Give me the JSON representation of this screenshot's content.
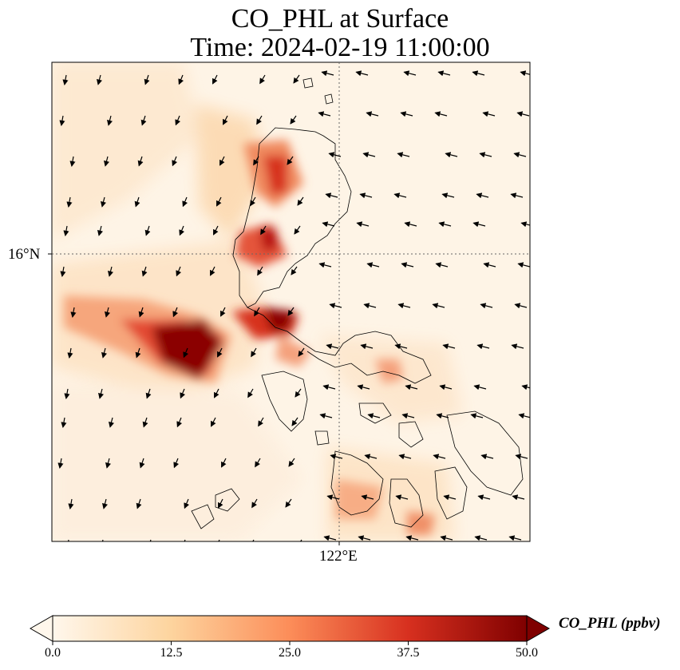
{
  "title": "CO_PHL at Surface",
  "subtitle": "Time: 2024-02-19 11:00:00",
  "map": {
    "variable": "CO_PHL",
    "level": "Surface",
    "lat_label": "16°N",
    "lon_label": "122°E",
    "gridlines": "dotted",
    "colormap": "OrRd",
    "features": [
      "coastlines",
      "wind-vectors",
      "concentration-field"
    ]
  },
  "colorbar": {
    "label": "CO_PHL (ppbv)",
    "ticks": [
      "0.0",
      "12.5",
      "25.0",
      "37.5",
      "50.0"
    ],
    "min": 0,
    "max": 50,
    "extend": "both",
    "colors": [
      "#fff7ec",
      "#fdd49e",
      "#fc8d59",
      "#d7301f",
      "#7f0000"
    ]
  }
}
